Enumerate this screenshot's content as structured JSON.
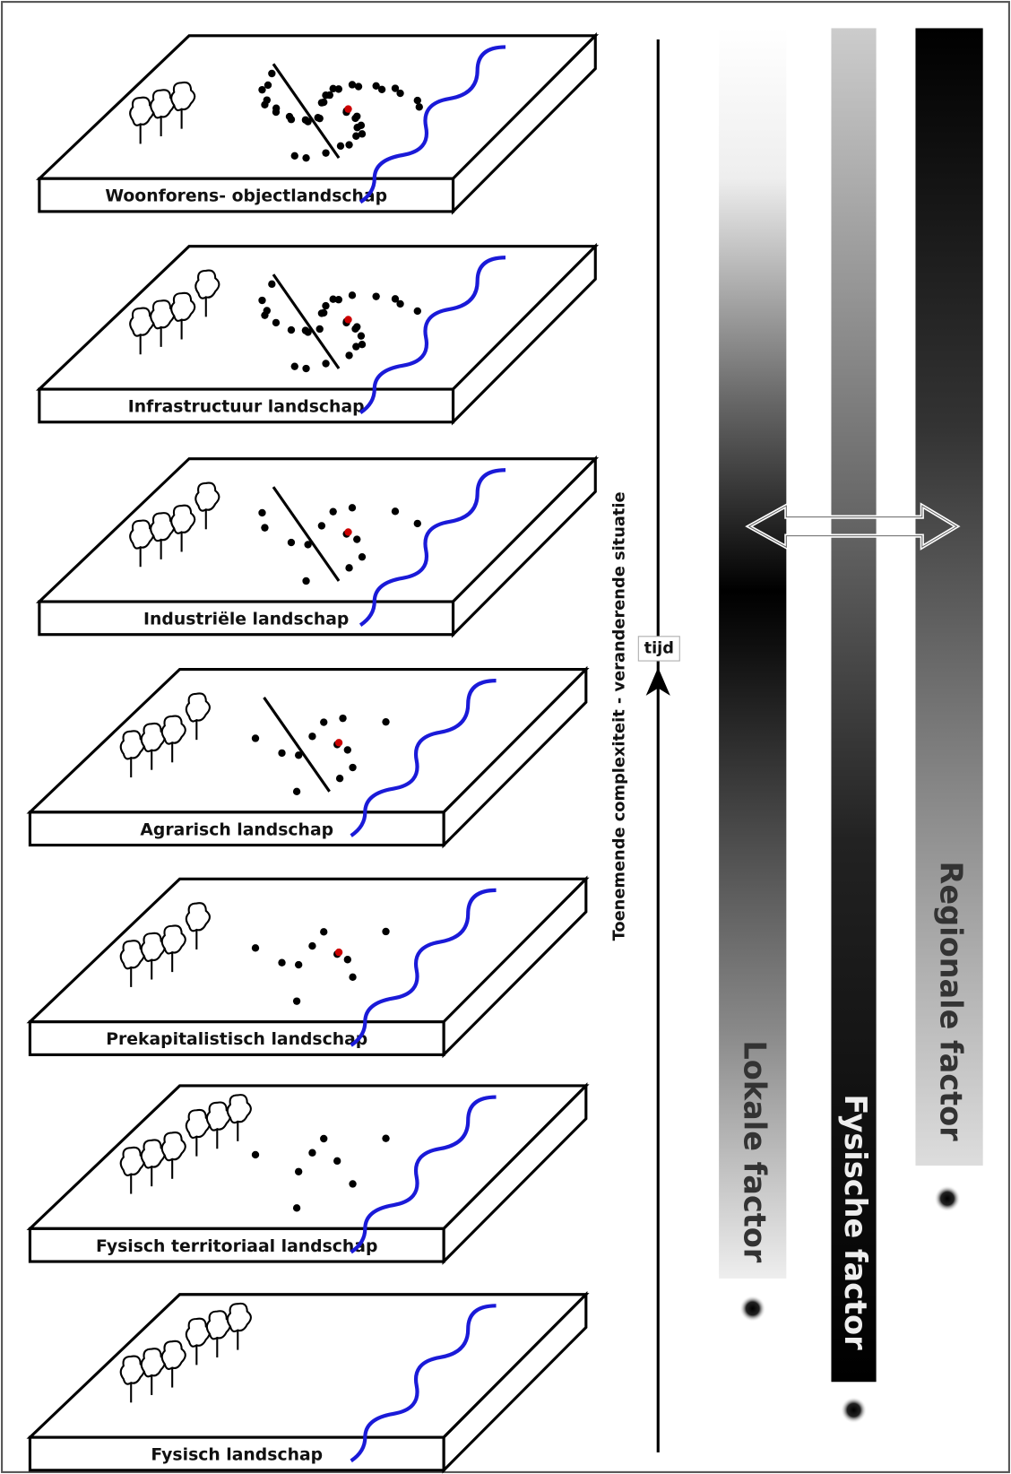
{
  "landscapes": [
    "Woonforens- objectlandschap",
    "Infrastructuur landschap",
    "Industriële landschap",
    "Agrarisch landschap",
    "Prekapitalistisch landschap",
    "Fysisch territoriaal landschap",
    "Fysisch landschap"
  ],
  "axis_label": "Toenemende complexiteit  -  veranderende situatie",
  "time_label": "tijd",
  "factors": [
    "Lokale factor",
    "Fysische factor",
    "Regionale factor"
  ]
}
